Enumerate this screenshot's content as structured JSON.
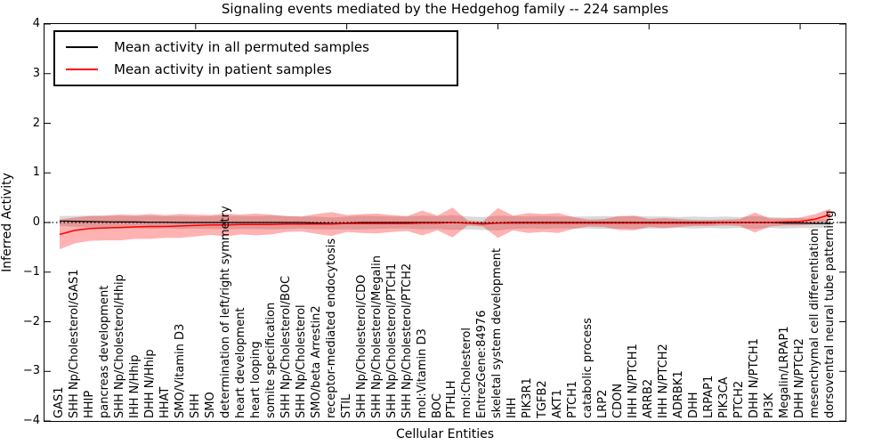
{
  "title": "Signaling events mediated by the Hedgehog family -- 224 samples",
  "legend": {
    "items": [
      {
        "label": "Mean activity in all permuted samples",
        "color": "#000000"
      },
      {
        "label": "Mean activity in patient samples",
        "color": "#ff0000"
      }
    ]
  },
  "y_axis": {
    "label": "Inferred Activity",
    "tick_values": [
      4,
      3,
      2,
      1,
      0,
      -1,
      -2,
      -3,
      -4
    ],
    "tick_labels": [
      "4",
      "3",
      "2",
      "1",
      "0",
      "−1",
      "−2",
      "−3",
      "−4"
    ]
  },
  "x_axis": {
    "label": "Cellular Entities",
    "major_tick_indices": [
      9,
      19,
      29,
      39,
      49
    ]
  },
  "chart_data": {
    "type": "line",
    "title": "Signaling events mediated by the Hedgehog family -- 224 samples",
    "xlabel": "Cellular Entities",
    "ylabel": "Inferred Activity",
    "ylim": [
      -4,
      4
    ],
    "grid": false,
    "legend_position": "upper left",
    "zero_line": true,
    "categories": [
      "GAS1",
      "SHH Np/Cholesterol/GAS1",
      "HHIP",
      "pancreas development",
      "SHH Np/Cholesterol/Hhip",
      "IHH N/Hhip",
      "DHH N/Hhip",
      "HHAT",
      "SMO/Vitamin D3",
      "SHH",
      "SMO",
      "determination of left/right symmetry",
      "heart development",
      "heart looping",
      "somite specification",
      "SHH Np/Cholesterol/BOC",
      "SHH Np/Cholesterol",
      "SMO/beta Arrestin2",
      "receptor-mediated endocytosis",
      "STIL",
      "SHH Np/Cholesterol/CDO",
      "SHH Np/Cholesterol/Megalin",
      "SHH Np/Cholesterol/PTCH1",
      "SHH Np/Cholesterol/PTCH2",
      "mol:Vitamin D3",
      "BOC",
      "PTHLH",
      "mol:Cholesterol",
      "EntrezGene:84976",
      "skeletal system development",
      "IHH",
      "PIK3R1",
      "TGFB2",
      "AKT1",
      "PTCH1",
      "catabolic process",
      "LRP2",
      "CDON",
      "IHH N/PTCH1",
      "ARRB2",
      "IHH N/PTCH2",
      "ADRBK1",
      "DHH",
      "LRPAP1",
      "PIK3CA",
      "PTCH2",
      "DHH N/PTCH1",
      "PI3K",
      "Megalin/LRPAP1",
      "DHH N/PTCH2",
      "mesenchymal cell differentiation",
      "dorsoventral neural tube patterning"
    ],
    "series": [
      {
        "name": "Mean activity in all permuted samples",
        "color": "#000000",
        "line_width": 1.2,
        "band_color": "#000000",
        "band_opacity": 0.15,
        "values": [
          0.03,
          0.025,
          0.02,
          0.015,
          0.01,
          0.01,
          0.005,
          0.005,
          0,
          0,
          0,
          0,
          0,
          0,
          0,
          0,
          0,
          -0.01,
          -0.02,
          -0.01,
          0,
          0,
          0,
          0,
          0,
          0,
          0,
          -0.01,
          -0.02,
          -0.01,
          0,
          0,
          0,
          0,
          0,
          0,
          0,
          0,
          0,
          0,
          0,
          0,
          0,
          0,
          0,
          0,
          0,
          0,
          -0.01,
          -0.01,
          -0.02,
          -0.02
        ],
        "std": [
          0.1,
          0.11,
          0.12,
          0.12,
          0.13,
          0.12,
          0.13,
          0.12,
          0.13,
          0.12,
          0.13,
          0.14,
          0.13,
          0.13,
          0.14,
          0.13,
          0.12,
          0.13,
          0.12,
          0.13,
          0.14,
          0.13,
          0.12,
          0.12,
          0.14,
          0.13,
          0.15,
          0.13,
          0.13,
          0.15,
          0.13,
          0.12,
          0.13,
          0.12,
          0.12,
          0.12,
          0.13,
          0.12,
          0.13,
          0.12,
          0.12,
          0.11,
          0.12,
          0.11,
          0.12,
          0.11,
          0.13,
          0.11,
          0.11,
          0.1,
          0.09,
          0.08
        ]
      },
      {
        "name": "Mean activity in patient samples",
        "color": "#ff0000",
        "line_width": 1.5,
        "band_color": "#ff0000",
        "band_opacity": 0.3,
        "values": [
          -0.24,
          -0.16,
          -0.12,
          -0.11,
          -0.1,
          -0.09,
          -0.08,
          -0.08,
          -0.07,
          -0.06,
          -0.05,
          -0.05,
          -0.04,
          -0.04,
          -0.04,
          -0.03,
          -0.03,
          -0.03,
          -0.03,
          -0.02,
          -0.02,
          -0.02,
          -0.02,
          -0.02,
          -0.01,
          -0.01,
          0.0,
          -0.01,
          -0.03,
          -0.01,
          -0.01,
          -0.01,
          -0.01,
          -0.01,
          -0.01,
          -0.01,
          -0.01,
          -0.01,
          -0.01,
          -0.01,
          -0.01,
          -0.01,
          -0.01,
          -0.01,
          0.0,
          0.0,
          0.0,
          0.0,
          0.01,
          0.02,
          0.07,
          0.16
        ],
        "std": [
          0.3,
          0.26,
          0.25,
          0.25,
          0.26,
          0.24,
          0.25,
          0.23,
          0.24,
          0.22,
          0.2,
          0.23,
          0.2,
          0.22,
          0.2,
          0.16,
          0.15,
          0.2,
          0.24,
          0.17,
          0.19,
          0.2,
          0.17,
          0.15,
          0.25,
          0.15,
          0.3,
          0.05,
          0.05,
          0.3,
          0.15,
          0.2,
          0.18,
          0.2,
          0.12,
          0.07,
          0.08,
          0.14,
          0.15,
          0.08,
          0.1,
          0.08,
          0.06,
          0.06,
          0.06,
          0.07,
          0.2,
          0.08,
          0.07,
          0.08,
          0.1,
          0.12
        ]
      }
    ]
  }
}
